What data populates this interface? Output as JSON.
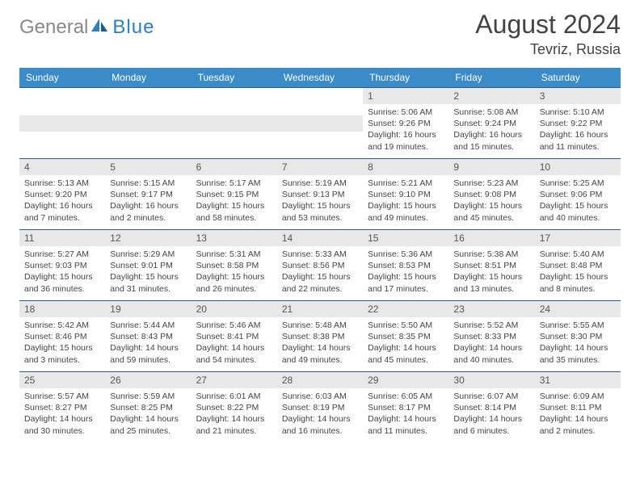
{
  "logo": {
    "general": "General",
    "blue": "Blue"
  },
  "title": "August 2024",
  "location": "Tevriz, Russia",
  "weekdays": [
    "Sunday",
    "Monday",
    "Tuesday",
    "Wednesday",
    "Thursday",
    "Friday",
    "Saturday"
  ],
  "colors": {
    "header_bg": "#3b8bc8",
    "header_text": "#ffffff",
    "daynum_bg": "#e8e8e8",
    "border": "#2a5a8a",
    "text": "#444444",
    "logo_gray": "#888888",
    "logo_blue": "#2c7fc1"
  },
  "layout": {
    "grid": "7x5",
    "first_day_column": 4,
    "days_in_month": 31
  },
  "days": [
    {
      "n": 1,
      "sunrise": "5:06 AM",
      "sunset": "9:26 PM",
      "daylight": "16 hours and 19 minutes."
    },
    {
      "n": 2,
      "sunrise": "5:08 AM",
      "sunset": "9:24 PM",
      "daylight": "16 hours and 15 minutes."
    },
    {
      "n": 3,
      "sunrise": "5:10 AM",
      "sunset": "9:22 PM",
      "daylight": "16 hours and 11 minutes."
    },
    {
      "n": 4,
      "sunrise": "5:13 AM",
      "sunset": "9:20 PM",
      "daylight": "16 hours and 7 minutes."
    },
    {
      "n": 5,
      "sunrise": "5:15 AM",
      "sunset": "9:17 PM",
      "daylight": "16 hours and 2 minutes."
    },
    {
      "n": 6,
      "sunrise": "5:17 AM",
      "sunset": "9:15 PM",
      "daylight": "15 hours and 58 minutes."
    },
    {
      "n": 7,
      "sunrise": "5:19 AM",
      "sunset": "9:13 PM",
      "daylight": "15 hours and 53 minutes."
    },
    {
      "n": 8,
      "sunrise": "5:21 AM",
      "sunset": "9:10 PM",
      "daylight": "15 hours and 49 minutes."
    },
    {
      "n": 9,
      "sunrise": "5:23 AM",
      "sunset": "9:08 PM",
      "daylight": "15 hours and 45 minutes."
    },
    {
      "n": 10,
      "sunrise": "5:25 AM",
      "sunset": "9:06 PM",
      "daylight": "15 hours and 40 minutes."
    },
    {
      "n": 11,
      "sunrise": "5:27 AM",
      "sunset": "9:03 PM",
      "daylight": "15 hours and 36 minutes."
    },
    {
      "n": 12,
      "sunrise": "5:29 AM",
      "sunset": "9:01 PM",
      "daylight": "15 hours and 31 minutes."
    },
    {
      "n": 13,
      "sunrise": "5:31 AM",
      "sunset": "8:58 PM",
      "daylight": "15 hours and 26 minutes."
    },
    {
      "n": 14,
      "sunrise": "5:33 AM",
      "sunset": "8:56 PM",
      "daylight": "15 hours and 22 minutes."
    },
    {
      "n": 15,
      "sunrise": "5:36 AM",
      "sunset": "8:53 PM",
      "daylight": "15 hours and 17 minutes."
    },
    {
      "n": 16,
      "sunrise": "5:38 AM",
      "sunset": "8:51 PM",
      "daylight": "15 hours and 13 minutes."
    },
    {
      "n": 17,
      "sunrise": "5:40 AM",
      "sunset": "8:48 PM",
      "daylight": "15 hours and 8 minutes."
    },
    {
      "n": 18,
      "sunrise": "5:42 AM",
      "sunset": "8:46 PM",
      "daylight": "15 hours and 3 minutes."
    },
    {
      "n": 19,
      "sunrise": "5:44 AM",
      "sunset": "8:43 PM",
      "daylight": "14 hours and 59 minutes."
    },
    {
      "n": 20,
      "sunrise": "5:46 AM",
      "sunset": "8:41 PM",
      "daylight": "14 hours and 54 minutes."
    },
    {
      "n": 21,
      "sunrise": "5:48 AM",
      "sunset": "8:38 PM",
      "daylight": "14 hours and 49 minutes."
    },
    {
      "n": 22,
      "sunrise": "5:50 AM",
      "sunset": "8:35 PM",
      "daylight": "14 hours and 45 minutes."
    },
    {
      "n": 23,
      "sunrise": "5:52 AM",
      "sunset": "8:33 PM",
      "daylight": "14 hours and 40 minutes."
    },
    {
      "n": 24,
      "sunrise": "5:55 AM",
      "sunset": "8:30 PM",
      "daylight": "14 hours and 35 minutes."
    },
    {
      "n": 25,
      "sunrise": "5:57 AM",
      "sunset": "8:27 PM",
      "daylight": "14 hours and 30 minutes."
    },
    {
      "n": 26,
      "sunrise": "5:59 AM",
      "sunset": "8:25 PM",
      "daylight": "14 hours and 25 minutes."
    },
    {
      "n": 27,
      "sunrise": "6:01 AM",
      "sunset": "8:22 PM",
      "daylight": "14 hours and 21 minutes."
    },
    {
      "n": 28,
      "sunrise": "6:03 AM",
      "sunset": "8:19 PM",
      "daylight": "14 hours and 16 minutes."
    },
    {
      "n": 29,
      "sunrise": "6:05 AM",
      "sunset": "8:17 PM",
      "daylight": "14 hours and 11 minutes."
    },
    {
      "n": 30,
      "sunrise": "6:07 AM",
      "sunset": "8:14 PM",
      "daylight": "14 hours and 6 minutes."
    },
    {
      "n": 31,
      "sunrise": "6:09 AM",
      "sunset": "8:11 PM",
      "daylight": "14 hours and 2 minutes."
    }
  ],
  "labels": {
    "sunrise": "Sunrise:",
    "sunset": "Sunset:",
    "daylight": "Daylight:"
  }
}
